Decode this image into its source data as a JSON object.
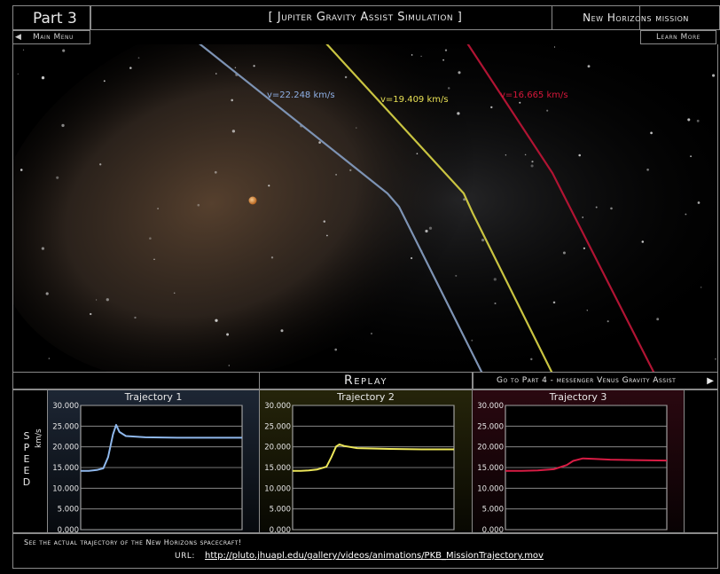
{
  "header": {
    "part": "Part 3",
    "title": "[ Jupiter Gravity Assist Simulation ]",
    "mission": "New Horizons mission"
  },
  "nav": {
    "main_menu": "Main Menu",
    "learn_more": "Learn More",
    "replay": "Replay",
    "goto_next": "Go to Part 4 - messenger Venus Gravity Assist"
  },
  "speed_axis": {
    "label": "SPEED",
    "unit": "km/s"
  },
  "trajectories": [
    {
      "label": "v=22.248 km/s",
      "color": "#8fb0e6"
    },
    {
      "label": "v=19.409 km/s",
      "color": "#e8e055"
    },
    {
      "label": "v=16.665 km/s",
      "color": "#d6173a"
    }
  ],
  "chart_data": [
    {
      "type": "line",
      "title": "Trajectory 1",
      "ylim": [
        0,
        30
      ],
      "yticks": [
        "0.000",
        "5.000",
        "10.000",
        "15.000",
        "20.000",
        "25.000",
        "30.000"
      ],
      "series": [
        {
          "color": "#8fb8ec",
          "x": [
            0,
            5,
            10,
            14,
            17,
            20,
            22,
            24,
            28,
            40,
            60,
            80,
            100
          ],
          "y": [
            14.2,
            14.2,
            14.4,
            14.8,
            17.5,
            23,
            25.3,
            23.6,
            22.6,
            22.3,
            22.2,
            22.2,
            22.2
          ]
        }
      ]
    },
    {
      "type": "line",
      "title": "Trajectory 2",
      "ylim": [
        0,
        30
      ],
      "yticks": [
        "0.000",
        "5.000",
        "10.000",
        "15.000",
        "20.000",
        "25.000",
        "30.000"
      ],
      "series": [
        {
          "color": "#ece65a",
          "x": [
            0,
            5,
            10,
            15,
            21,
            24,
            27,
            29,
            32,
            40,
            60,
            80,
            100
          ],
          "y": [
            14.2,
            14.2,
            14.3,
            14.5,
            15.2,
            17.5,
            20.1,
            20.6,
            20.2,
            19.7,
            19.5,
            19.4,
            19.4
          ]
        }
      ]
    },
    {
      "type": "line",
      "title": "Trajectory 3",
      "ylim": [
        0,
        30
      ],
      "yticks": [
        "0.000",
        "5.000",
        "10.000",
        "15.000",
        "20.000",
        "25.000",
        "30.000"
      ],
      "series": [
        {
          "color": "#d81c44",
          "x": [
            0,
            10,
            20,
            30,
            38,
            42,
            48,
            55,
            65,
            80,
            100
          ],
          "y": [
            14.2,
            14.2,
            14.3,
            14.6,
            15.6,
            16.6,
            17.2,
            17.1,
            16.9,
            16.8,
            16.7
          ]
        }
      ]
    }
  ],
  "footer": {
    "note": "See the actual trajectory of the New Horizons spacecraft!",
    "url_label": "URL:",
    "url": "http://pluto.jhuapl.edu/gallery/videos/animations/PKB_MissionTrajectory.mov"
  }
}
